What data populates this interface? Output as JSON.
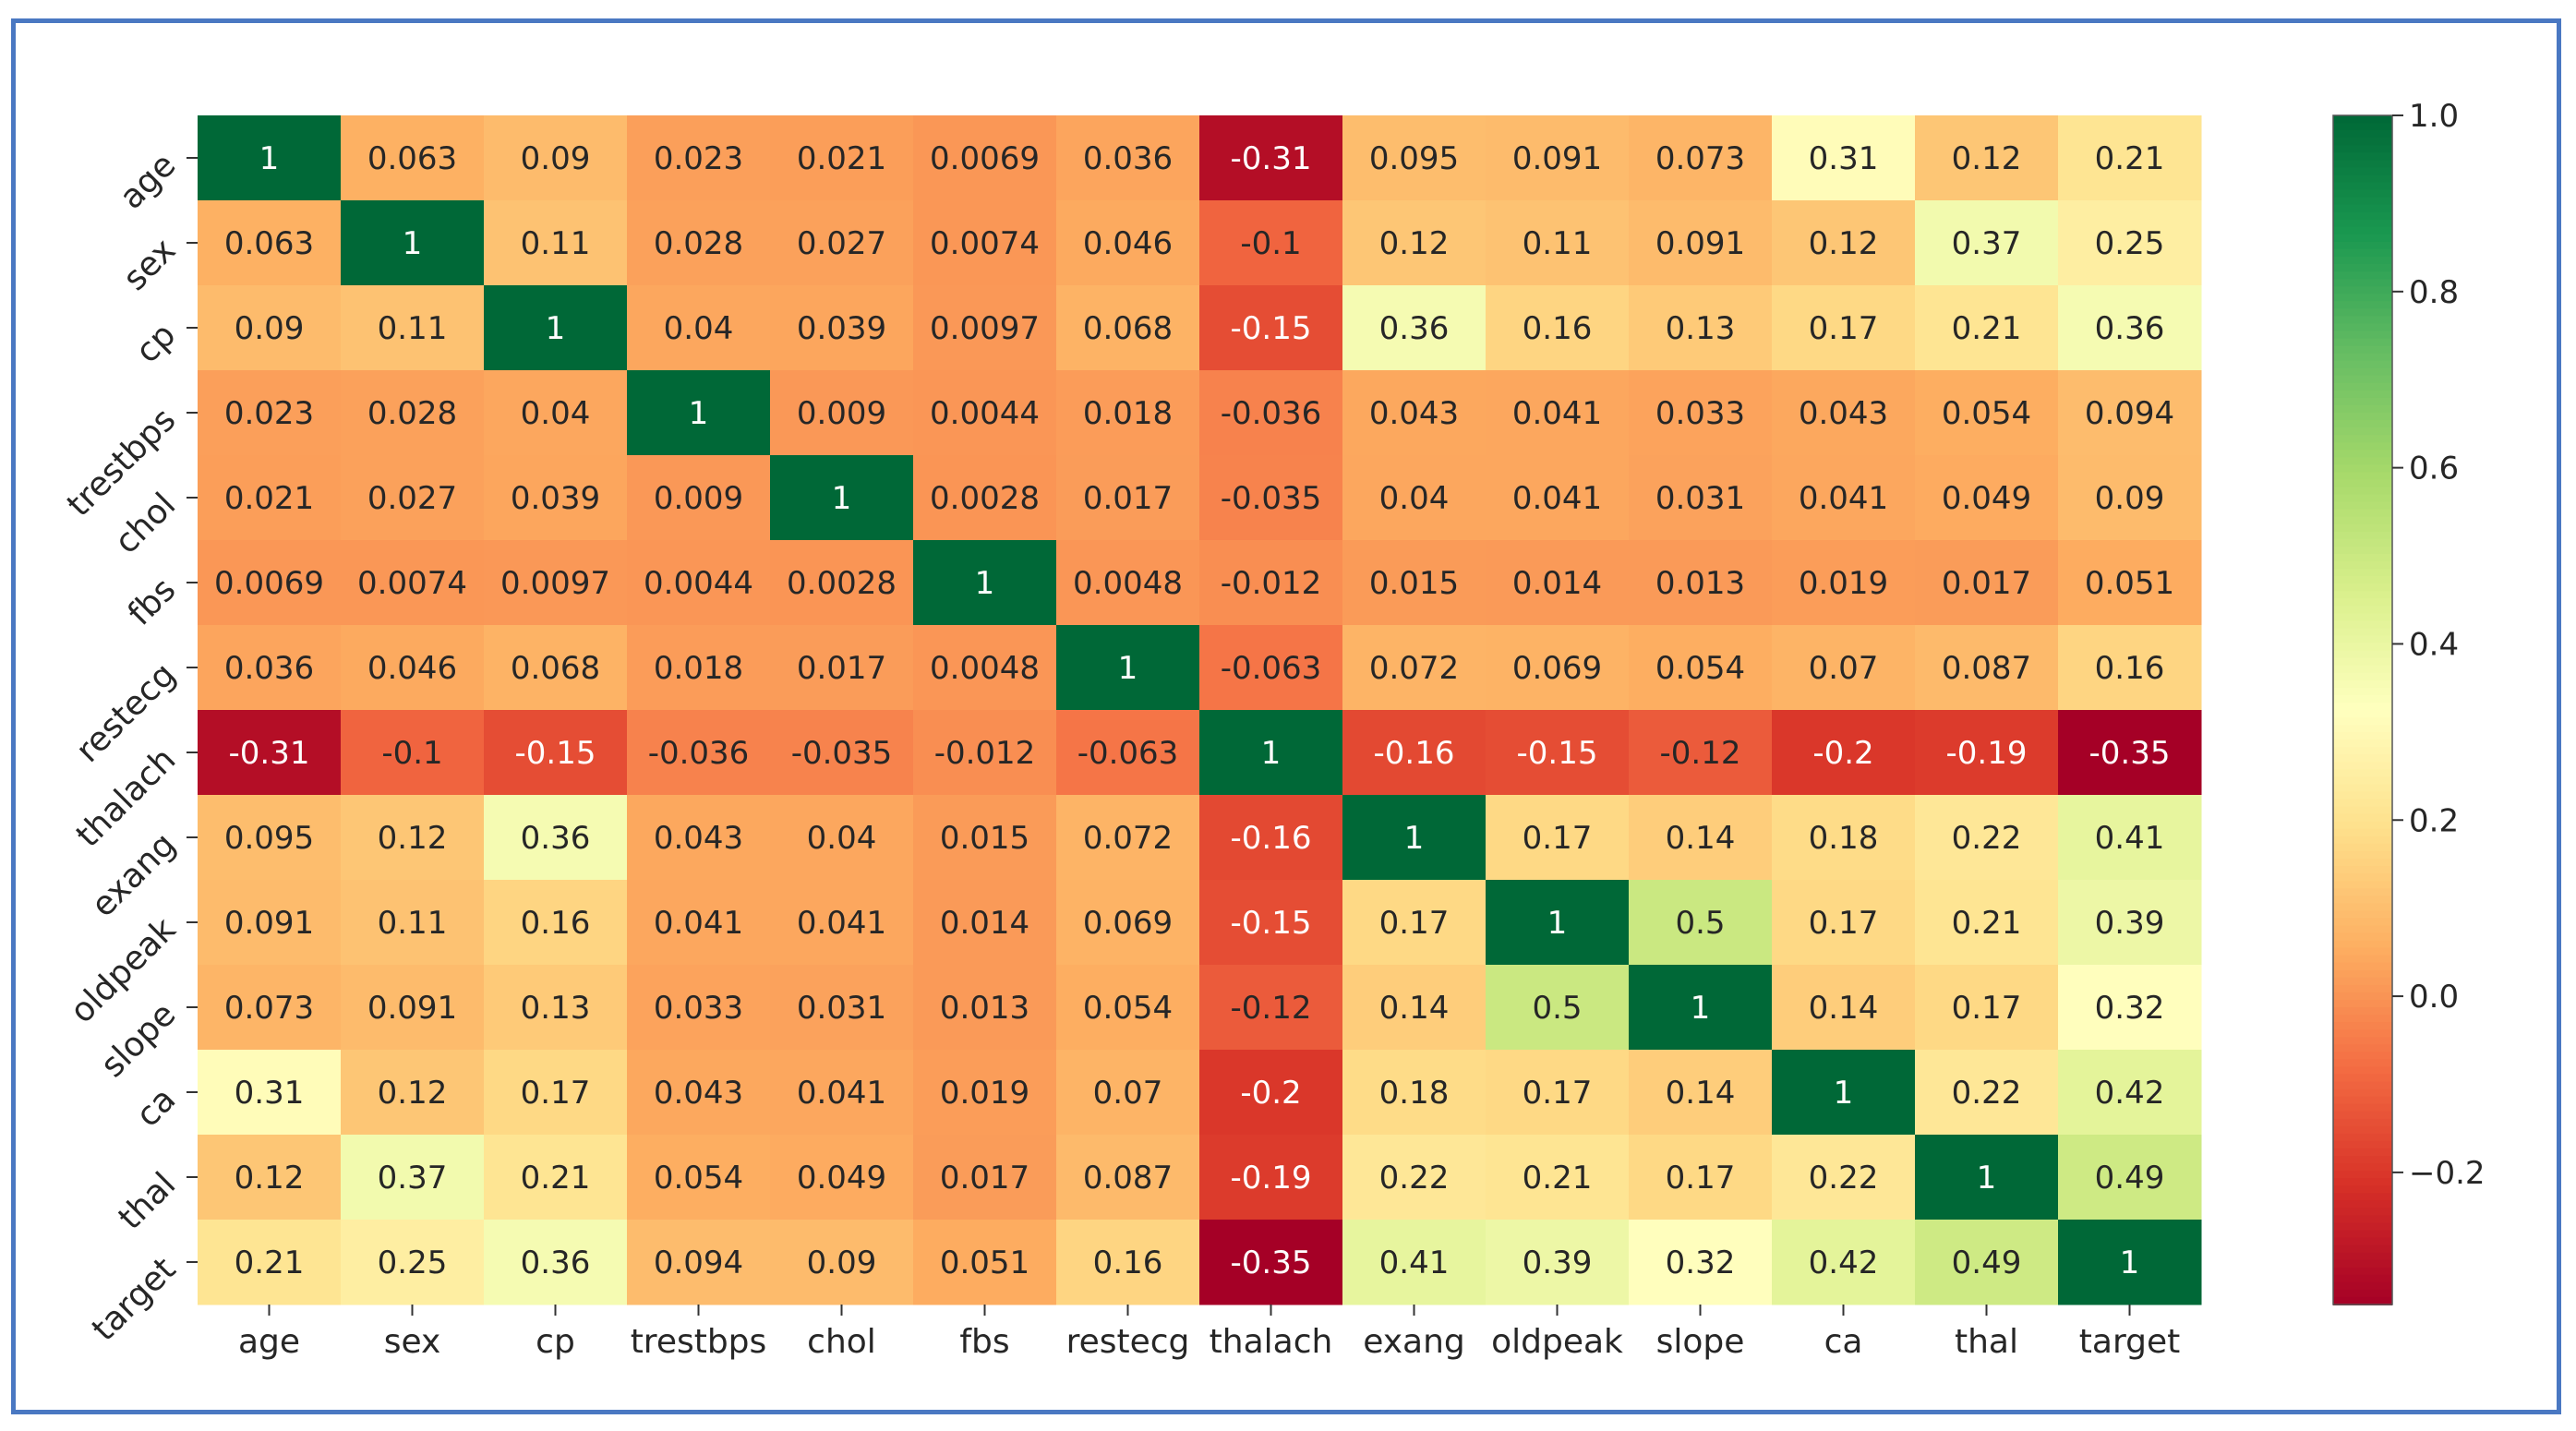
{
  "chart_data": {
    "type": "heatmap",
    "title": "",
    "variables": [
      "age",
      "sex",
      "cp",
      "trestbps",
      "chol",
      "fbs",
      "restecg",
      "thalach",
      "exang",
      "oldpeak",
      "slope",
      "ca",
      "thal",
      "target"
    ],
    "matrix": [
      [
        "1",
        "0.063",
        "0.09",
        "0.023",
        "0.021",
        "0.0069",
        "0.036",
        "-0.31",
        "0.095",
        "0.091",
        "0.073",
        "0.31",
        "0.12",
        "0.21"
      ],
      [
        "0.063",
        "1",
        "0.11",
        "0.028",
        "0.027",
        "0.0074",
        "0.046",
        "-0.1",
        "0.12",
        "0.11",
        "0.091",
        "0.12",
        "0.37",
        "0.25"
      ],
      [
        "0.09",
        "0.11",
        "1",
        "0.04",
        "0.039",
        "0.0097",
        "0.068",
        "-0.15",
        "0.36",
        "0.16",
        "0.13",
        "0.17",
        "0.21",
        "0.36"
      ],
      [
        "0.023",
        "0.028",
        "0.04",
        "1",
        "0.009",
        "0.0044",
        "0.018",
        "-0.036",
        "0.043",
        "0.041",
        "0.033",
        "0.043",
        "0.054",
        "0.094"
      ],
      [
        "0.021",
        "0.027",
        "0.039",
        "0.009",
        "1",
        "0.0028",
        "0.017",
        "-0.035",
        "0.04",
        "0.041",
        "0.031",
        "0.041",
        "0.049",
        "0.09"
      ],
      [
        "0.0069",
        "0.0074",
        "0.0097",
        "0.0044",
        "0.0028",
        "1",
        "0.0048",
        "-0.012",
        "0.015",
        "0.014",
        "0.013",
        "0.019",
        "0.017",
        "0.051"
      ],
      [
        "0.036",
        "0.046",
        "0.068",
        "0.018",
        "0.017",
        "0.0048",
        "1",
        "-0.063",
        "0.072",
        "0.069",
        "0.054",
        "0.07",
        "0.087",
        "0.16"
      ],
      [
        "-0.31",
        "-0.1",
        "-0.15",
        "-0.036",
        "-0.035",
        "-0.012",
        "-0.063",
        "1",
        "-0.16",
        "-0.15",
        "-0.12",
        "-0.2",
        "-0.19",
        "-0.35"
      ],
      [
        "0.095",
        "0.12",
        "0.36",
        "0.043",
        "0.04",
        "0.015",
        "0.072",
        "-0.16",
        "1",
        "0.17",
        "0.14",
        "0.18",
        "0.22",
        "0.41"
      ],
      [
        "0.091",
        "0.11",
        "0.16",
        "0.041",
        "0.041",
        "0.014",
        "0.069",
        "-0.15",
        "0.17",
        "1",
        "0.5",
        "0.17",
        "0.21",
        "0.39"
      ],
      [
        "0.073",
        "0.091",
        "0.13",
        "0.033",
        "0.031",
        "0.013",
        "0.054",
        "-0.12",
        "0.14",
        "0.5",
        "1",
        "0.14",
        "0.17",
        "0.32"
      ],
      [
        "0.31",
        "0.12",
        "0.17",
        "0.043",
        "0.041",
        "0.019",
        "0.07",
        "-0.2",
        "0.18",
        "0.17",
        "0.14",
        "1",
        "0.22",
        "0.42"
      ],
      [
        "0.12",
        "0.37",
        "0.21",
        "0.054",
        "0.049",
        "0.017",
        "0.087",
        "-0.19",
        "0.22",
        "0.21",
        "0.17",
        "0.22",
        "1",
        "0.49"
      ],
      [
        "0.21",
        "0.25",
        "0.36",
        "0.094",
        "0.09",
        "0.051",
        "0.16",
        "-0.35",
        "0.41",
        "0.39",
        "0.32",
        "0.42",
        "0.49",
        "1"
      ]
    ],
    "colorbar": {
      "ticks": [
        1.0,
        0.8,
        0.6,
        0.4,
        0.2,
        0.0,
        -0.2
      ],
      "tick_labels": [
        "1.0",
        "0.8",
        "0.6",
        "0.4",
        "0.2",
        "0.0",
        "−0.2"
      ],
      "vmin": -0.35,
      "vmax": 1.0,
      "colormap": "RdYlGn"
    }
  },
  "colors": {
    "frame_border": "#4a78c2",
    "text_dark": "#262626",
    "text_light": "#ffffff"
  }
}
